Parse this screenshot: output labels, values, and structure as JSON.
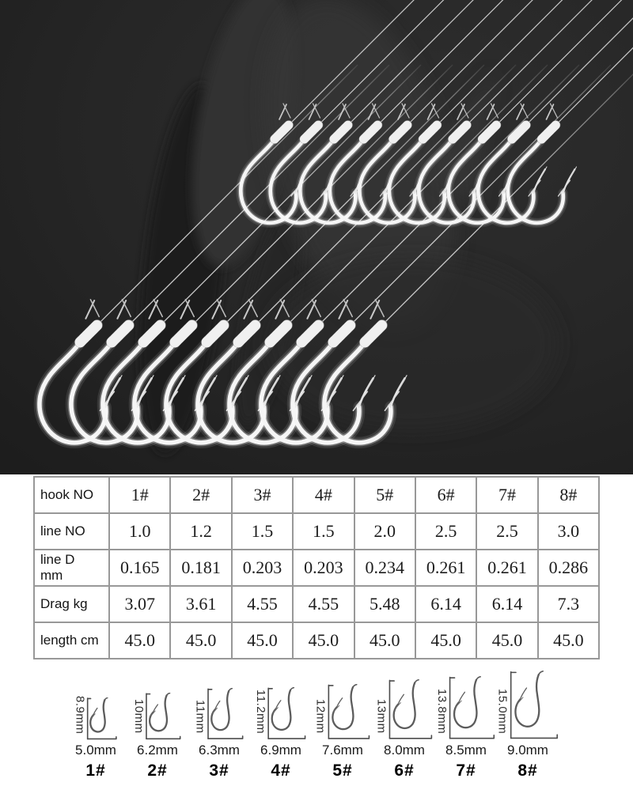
{
  "photo": {
    "subject": "two rows of silver snelled fishing hooks on monofilament lines",
    "top_row_hooks": 10,
    "bottom_row_hooks": 10,
    "background_color": "#232323",
    "hook_color": "#f5f5f5",
    "line_color": "#d6d6d6"
  },
  "table": {
    "rows": [
      {
        "label": "hook NO",
        "values": [
          "1#",
          "2#",
          "3#",
          "4#",
          "5#",
          "6#",
          "7#",
          "8#"
        ]
      },
      {
        "label": "line NO",
        "values": [
          "1.0",
          "1.2",
          "1.5",
          "1.5",
          "2.0",
          "2.5",
          "2.5",
          "3.0"
        ]
      },
      {
        "label": "line D\nmm",
        "values": [
          "0.165",
          "0.181",
          "0.203",
          "0.203",
          "0.234",
          "0.261",
          "0.261",
          "0.286"
        ]
      },
      {
        "label": "Drag kg",
        "values": [
          "3.07",
          "3.61",
          "4.55",
          "4.55",
          "5.48",
          "6.14",
          "6.14",
          "7.3"
        ]
      },
      {
        "label": "length cm",
        "values": [
          "45.0",
          "45.0",
          "45.0",
          "45.0",
          "45.0",
          "45.0",
          "45.0",
          "45.0"
        ]
      }
    ]
  },
  "size_diagrams": [
    {
      "hook_no": "1#",
      "height": "8.9mm",
      "width": "5.0mm"
    },
    {
      "hook_no": "2#",
      "height": "10mm",
      "width": "6.2mm"
    },
    {
      "hook_no": "3#",
      "height": "11mm",
      "width": "6.3mm"
    },
    {
      "hook_no": "4#",
      "height": "11.2mm",
      "width": "6.9mm"
    },
    {
      "hook_no": "5#",
      "height": "12mm",
      "width": "7.6mm"
    },
    {
      "hook_no": "6#",
      "height": "13mm",
      "width": "8.0mm"
    },
    {
      "hook_no": "7#",
      "height": "13.8mm",
      "width": "8.5mm"
    },
    {
      "hook_no": "8#",
      "height": "15.0mm",
      "width": "9.0mm"
    }
  ]
}
